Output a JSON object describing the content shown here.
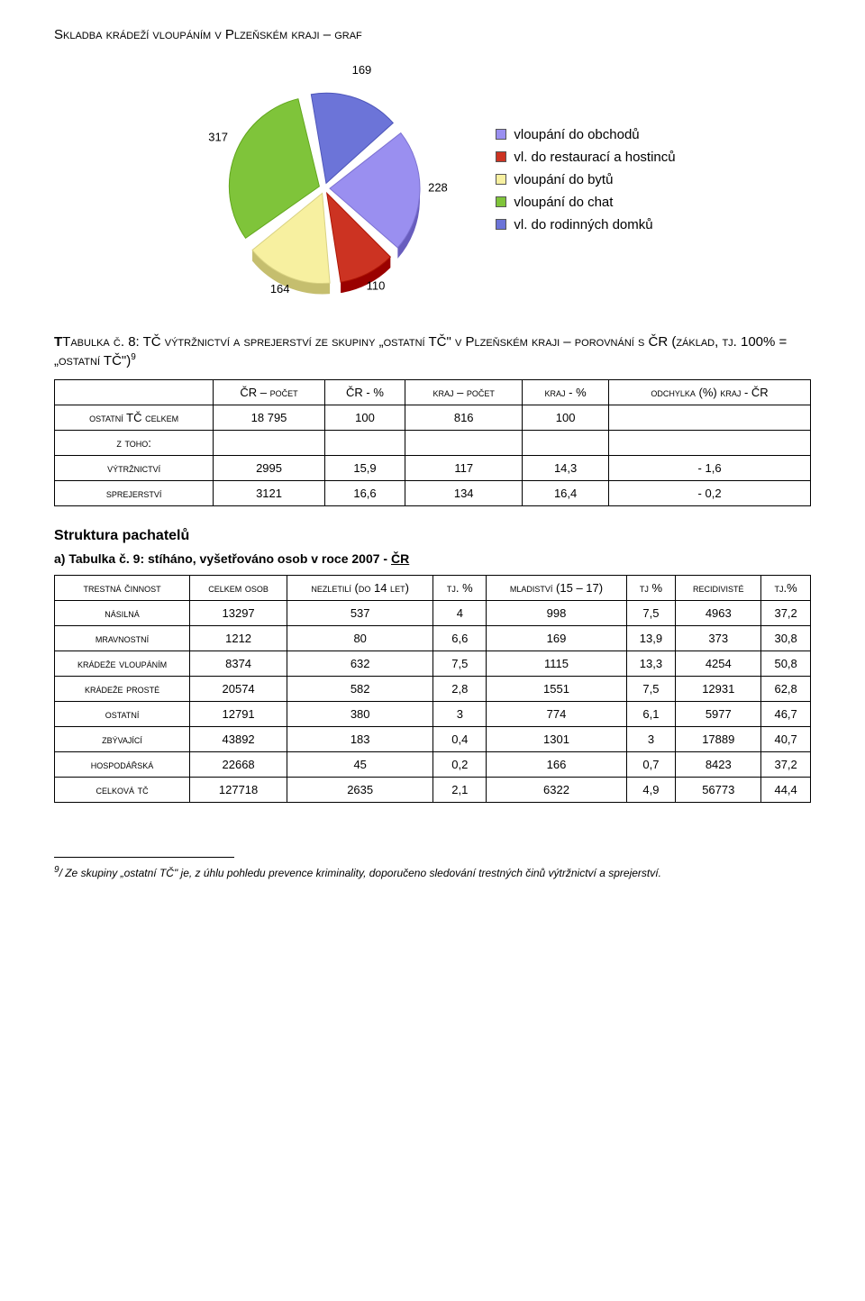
{
  "page": {
    "title1": "Skladba krádeží vloupáním v Plzeňském kraji – graf"
  },
  "pie": {
    "type": "pie",
    "background_color": "#ffffff",
    "slice_gap_deg": 4,
    "label_fontsize": 13,
    "legend_font": "Comic Sans MS",
    "slices": [
      {
        "label": "vloupání do obchodů",
        "value": 228,
        "color": "#9a8ff0",
        "value_label": "228"
      },
      {
        "label": "vl. do restaurací a hostinců",
        "value": 110,
        "color": "#cc3322",
        "value_label": "110"
      },
      {
        "label": "vloupání do bytů",
        "value": 164,
        "color": "#f7f0a0",
        "value_label": "164"
      },
      {
        "label": "vloupání do chat",
        "value": 317,
        "color": "#7fc43a",
        "value_label": "317"
      },
      {
        "label": "vl. do rodinných domků",
        "value": 169,
        "color": "#6c74d8",
        "value_label": "169"
      }
    ]
  },
  "table1": {
    "title_prefix": "Tabulka č. 8: TČ výtržnictví a sprejerství ze skupiny „ostatní TČ\" v Plzeňském kraji – porovnání s ČR (základ, tj. 100% = „ostatní TČ\")",
    "sup": "9",
    "cols": [
      "ČR – počet",
      "ČR - %",
      "kraj – počet",
      "kraj - %",
      "odchylka (%) kraj - ČR"
    ],
    "rows": [
      {
        "label": "ostatní TČ celkem",
        "cells": [
          "18 795",
          "100",
          "816",
          "100",
          ""
        ]
      },
      {
        "label": "z toho:",
        "cells": [
          "",
          "",
          "",
          "",
          ""
        ]
      },
      {
        "label": "výtržnictví",
        "cells": [
          "2995",
          "15,9",
          "117",
          "14,3",
          "- 1,6"
        ]
      },
      {
        "label": "sprejerství",
        "cells": [
          "3121",
          "16,6",
          "134",
          "16,4",
          "- 0,2"
        ]
      }
    ]
  },
  "section": {
    "heading": "Struktura pachatelů",
    "sub_a": "a)  Tabulka č. 9: stíháno, vyšetřováno osob v roce 2007 - ",
    "sub_a_u": "ČR"
  },
  "table2": {
    "cols": [
      "trestná činnost",
      "celkem osob",
      "nezletilí (do 14 let)",
      "tj. %",
      "mladiství (15 – 17)",
      "tj %",
      "recidivisté",
      "tj.%"
    ],
    "rows": [
      {
        "label": "násilná",
        "cells": [
          "13297",
          "537",
          "4",
          "998",
          "7,5",
          "4963",
          "37,2"
        ]
      },
      {
        "label": "mravnostní",
        "cells": [
          "1212",
          "80",
          "6,6",
          "169",
          "13,9",
          "373",
          "30,8"
        ]
      },
      {
        "label": "krádeže vloupáním",
        "cells": [
          "8374",
          "632",
          "7,5",
          "1115",
          "13,3",
          "4254",
          "50,8"
        ]
      },
      {
        "label": "krádeže prosté",
        "cells": [
          "20574",
          "582",
          "2,8",
          "1551",
          "7,5",
          "12931",
          "62,8"
        ]
      },
      {
        "label": "ostatní",
        "cells": [
          "12791",
          "380",
          "3",
          "774",
          "6,1",
          "5977",
          "46,7"
        ]
      },
      {
        "label": "zbývající",
        "cells": [
          "43892",
          "183",
          "0,4",
          "1301",
          "3",
          "17889",
          "40,7"
        ]
      },
      {
        "label": "hospodářská",
        "cells": [
          "22668",
          "45",
          "0,2",
          "166",
          "0,7",
          "8423",
          "37,2"
        ]
      },
      {
        "label": "celková tč",
        "cells": [
          "127718",
          "2635",
          "2,1",
          "6322",
          "4,9",
          "56773",
          "44,4"
        ]
      }
    ]
  },
  "footnote": {
    "num": "9",
    "text": "/ Ze skupiny „ostatní TČ\" je, z úhlu pohledu prevence kriminality, doporučeno sledování trestných činů výtržnictví a sprejerství."
  }
}
